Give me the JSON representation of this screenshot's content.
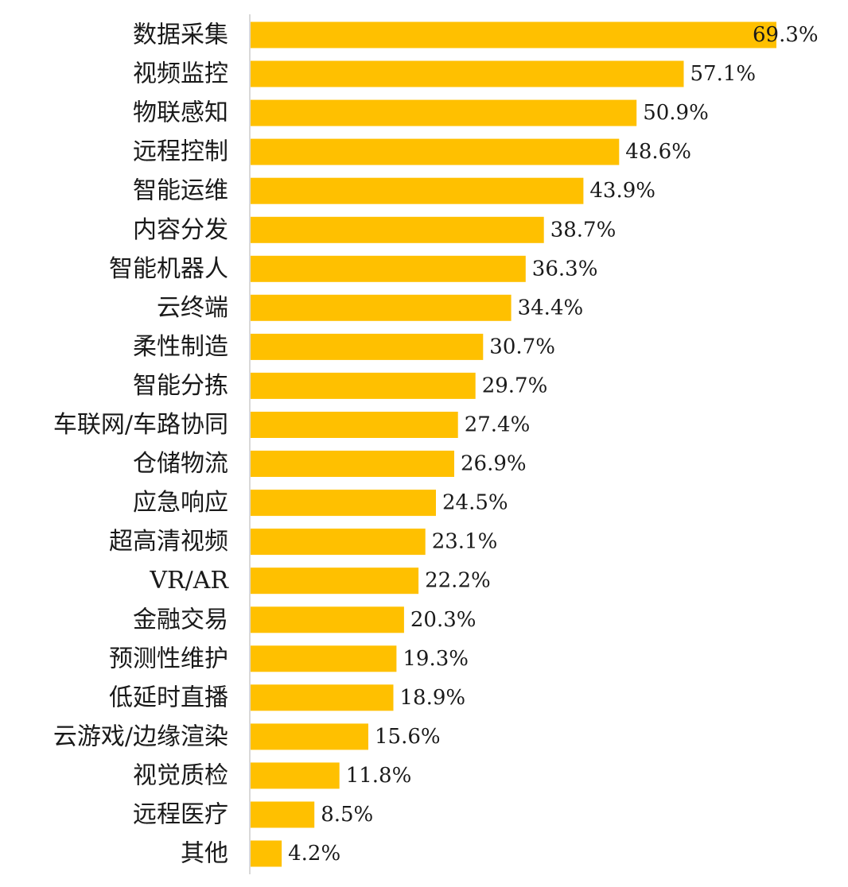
{
  "chart_data": {
    "type": "bar",
    "orientation": "horizontal",
    "categories": [
      "数据采集",
      "视频监控",
      "物联感知",
      "远程控制",
      "智能运维",
      "内容分发",
      "智能机器人",
      "云终端",
      "柔性制造",
      "智能分拣",
      "车联网/车路协同",
      "仓储物流",
      "应急响应",
      "超高清视频",
      "VR/AR",
      "金融交易",
      "预测性维护",
      "低延时直播",
      "云游戏/边缘渲染",
      "视觉质检",
      "远程医疗",
      "其他"
    ],
    "values": [
      69.3,
      57.1,
      50.9,
      48.6,
      43.9,
      38.7,
      36.3,
      34.4,
      30.7,
      29.7,
      27.4,
      26.9,
      24.5,
      23.1,
      22.2,
      20.3,
      19.3,
      18.9,
      15.6,
      11.8,
      8.5,
      4.2
    ],
    "value_labels": [
      "69.3%",
      "57.1%",
      "50.9%",
      "48.6%",
      "43.9%",
      "38.7%",
      "36.3%",
      "34.4%",
      "30.7%",
      "29.7%",
      "27.4%",
      "26.9%",
      "24.5%",
      "23.1%",
      "22.2%",
      "20.3%",
      "19.3%",
      "18.9%",
      "15.6%",
      "11.8%",
      "8.5%",
      "4.2%"
    ],
    "bar_color": "#FFC000",
    "axis_line_color": "#d9d9d9",
    "text_color": "#1a1a1a",
    "xlim": [
      0,
      69.3
    ],
    "grid": false,
    "legend": "none"
  }
}
